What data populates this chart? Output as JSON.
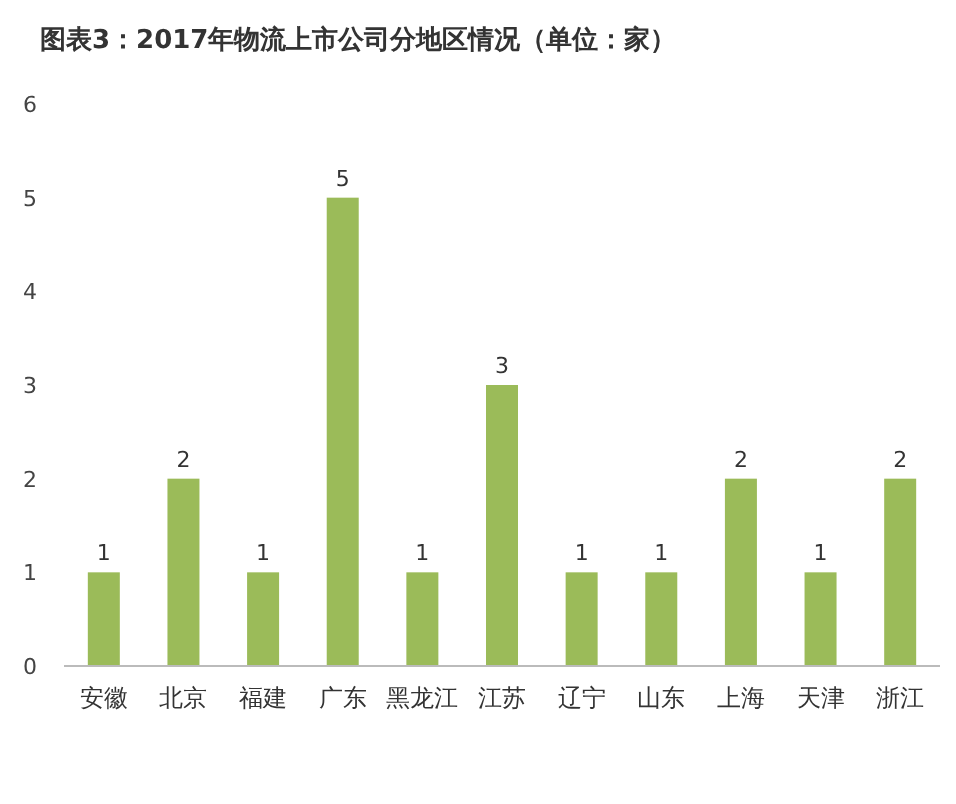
{
  "chart_data": {
    "type": "bar",
    "title": "图表3：2017年物流上市公司分地区情况（单位：家）",
    "categories": [
      "安徽",
      "北京",
      "福建",
      "广东",
      "黑龙江",
      "江苏",
      "辽宁",
      "山东",
      "上海",
      "天津",
      "浙江"
    ],
    "values": [
      1,
      2,
      1,
      5,
      1,
      3,
      1,
      1,
      2,
      1,
      2
    ],
    "color": "#9bbb59",
    "ylim": [
      0,
      6
    ],
    "yticks": [
      0,
      1,
      2,
      3,
      4,
      5,
      6
    ],
    "data_labels": true
  }
}
